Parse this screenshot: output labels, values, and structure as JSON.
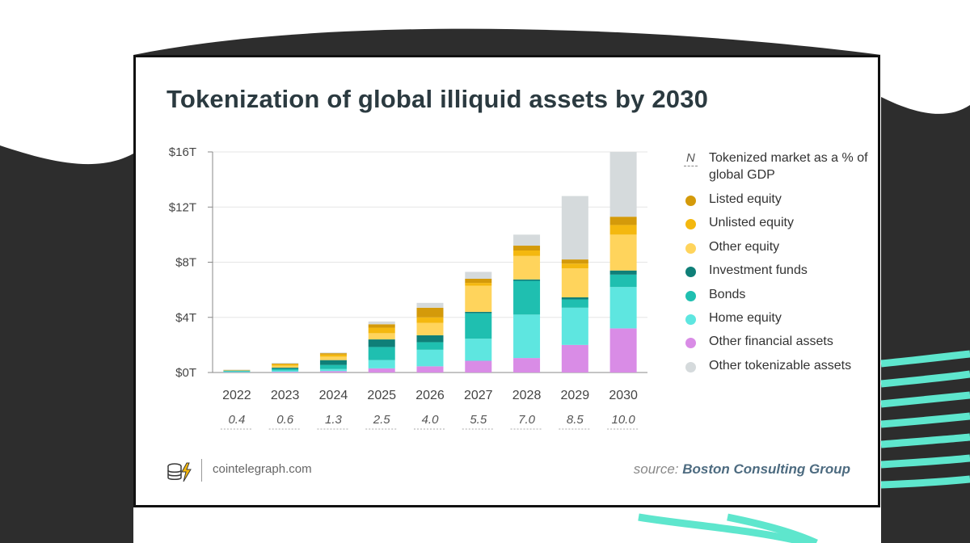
{
  "page": {
    "site": "cointelegraph.com"
  },
  "source": {
    "prefix": "source:",
    "name": "Boston Consulting Group"
  },
  "colors": {
    "background_dark": "#2d2d2d",
    "background_accent": "#5ee6cd",
    "title": "#2b3a40"
  },
  "icons": {
    "logo": "coin-stack-lightning-icon"
  },
  "legend": {
    "marker": "N",
    "marker_label": "Tokenized market as a % of global GDP"
  },
  "chart_data": {
    "type": "bar",
    "stacked": true,
    "title": "Tokenization of global illiquid assets by 2030",
    "xlabel": "",
    "ylabel": "",
    "ylim": [
      0,
      16
    ],
    "yticks": [
      0,
      4,
      8,
      12,
      16
    ],
    "ytick_labels": [
      "$0T",
      "$4T",
      "$8T",
      "$12T",
      "$16T"
    ],
    "grid": true,
    "legend_position": "right",
    "categories": [
      "2022",
      "2023",
      "2024",
      "2025",
      "2026",
      "2027",
      "2028",
      "2029",
      "2030"
    ],
    "gdp_percent_labels": [
      "0.4",
      "0.6",
      "1.3",
      "2.5",
      "4.0",
      "5.5",
      "7.0",
      "8.5",
      "10.0"
    ],
    "series": [
      {
        "name": "Other financial assets",
        "color": "#d98ce6",
        "values": [
          0.02,
          0.05,
          0.1,
          0.3,
          0.45,
          0.85,
          1.05,
          2.0,
          3.2
        ]
      },
      {
        "name": "Home equity",
        "color": "#5ee6e0",
        "values": [
          0.05,
          0.1,
          0.15,
          0.6,
          1.2,
          1.6,
          3.15,
          2.7,
          3.0
        ]
      },
      {
        "name": "Bonds",
        "color": "#1fbfb0",
        "values": [
          0.05,
          0.12,
          0.3,
          0.95,
          0.55,
          1.85,
          2.45,
          0.6,
          0.9
        ]
      },
      {
        "name": "Investment funds",
        "color": "#0f7f78",
        "values": [
          0.02,
          0.08,
          0.35,
          0.55,
          0.5,
          0.1,
          0.1,
          0.15,
          0.3
        ]
      },
      {
        "name": "Other equity",
        "color": "#ffd45c",
        "values": [
          0.02,
          0.15,
          0.25,
          0.45,
          0.9,
          1.9,
          1.7,
          2.1,
          2.6
        ]
      },
      {
        "name": "Unlisted equity",
        "color": "#f4b80f",
        "values": [
          0.02,
          0.1,
          0.15,
          0.4,
          0.4,
          0.2,
          0.4,
          0.35,
          0.7
        ]
      },
      {
        "name": "Listed equity",
        "color": "#d49a0a",
        "values": [
          0.01,
          0.05,
          0.1,
          0.25,
          0.7,
          0.3,
          0.35,
          0.3,
          0.6
        ]
      },
      {
        "name": "Other tokenizable assets",
        "color": "#d5dadc",
        "values": [
          0.02,
          0.05,
          0.05,
          0.2,
          0.35,
          0.5,
          0.8,
          4.6,
          4.7
        ]
      }
    ],
    "legend_order": [
      "Listed equity",
      "Unlisted equity",
      "Other equity",
      "Investment funds",
      "Bonds",
      "Home equity",
      "Other financial assets",
      "Other tokenizable assets"
    ]
  }
}
